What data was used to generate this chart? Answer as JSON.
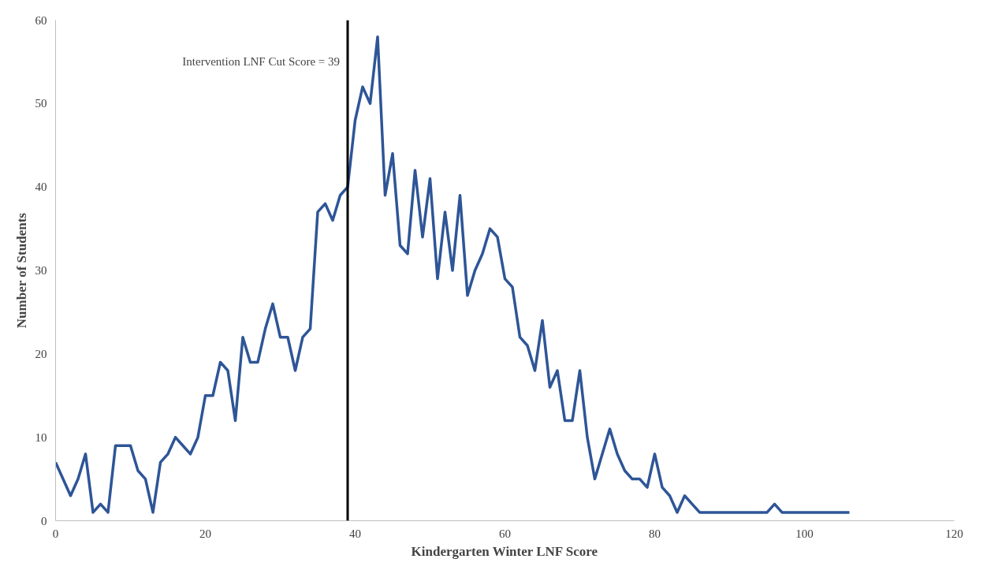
{
  "chart_data": {
    "type": "line",
    "xlabel": "Kindergarten Winter LNF Score",
    "ylabel": "Number of Students",
    "x": [
      0,
      1,
      2,
      3,
      4,
      5,
      6,
      7,
      8,
      9,
      10,
      11,
      12,
      13,
      14,
      15,
      16,
      17,
      18,
      19,
      20,
      21,
      22,
      23,
      24,
      25,
      26,
      27,
      28,
      29,
      30,
      31,
      32,
      33,
      34,
      35,
      36,
      37,
      38,
      39,
      40,
      41,
      42,
      43,
      44,
      45,
      46,
      47,
      48,
      49,
      50,
      51,
      52,
      53,
      54,
      55,
      56,
      57,
      58,
      59,
      60,
      61,
      62,
      63,
      64,
      65,
      66,
      67,
      68,
      69,
      70,
      71,
      72,
      73,
      74,
      75,
      76,
      77,
      78,
      79,
      80,
      81,
      82,
      83,
      84,
      85,
      86,
      87,
      88,
      89,
      90,
      91,
      92,
      93,
      94,
      95,
      96,
      97,
      98,
      99,
      100,
      101,
      102,
      103,
      104,
      105,
      106
    ],
    "series": [
      {
        "color": "#2e5597",
        "values": [
          7,
          5,
          3,
          5,
          8,
          1,
          2,
          1,
          9,
          9,
          9,
          6,
          5,
          1,
          7,
          8,
          10,
          9,
          8,
          10,
          15,
          15,
          19,
          18,
          12,
          22,
          19,
          19,
          23,
          26,
          22,
          22,
          18,
          22,
          23,
          37,
          38,
          36,
          39,
          40,
          48,
          52,
          50,
          58,
          39,
          44,
          33,
          32,
          42,
          34,
          41,
          29,
          37,
          30,
          39,
          27,
          30,
          32,
          35,
          34,
          29,
          28,
          22,
          21,
          18,
          24,
          16,
          18,
          12,
          12,
          18,
          10,
          5,
          8,
          11,
          8,
          6,
          5,
          5,
          4,
          8,
          4,
          3,
          1,
          3,
          2,
          1,
          1,
          1,
          1,
          1,
          1,
          1,
          1,
          1,
          1,
          2,
          1,
          1,
          1,
          1,
          1,
          1,
          1,
          1,
          1,
          1
        ]
      }
    ],
    "xlim": [
      0,
      120
    ],
    "xticks": [
      0,
      20,
      40,
      60,
      80,
      100,
      120
    ],
    "ylim": [
      0,
      60
    ],
    "yticks": [
      0,
      10,
      20,
      30,
      40,
      50,
      60
    ],
    "grid": false,
    "marker": "none",
    "line_style": "solid",
    "ref_lines": [
      {
        "axis": "x",
        "value": 39,
        "label": "Intervention LNF Cut Score = 39",
        "color": "#000000"
      }
    ]
  }
}
